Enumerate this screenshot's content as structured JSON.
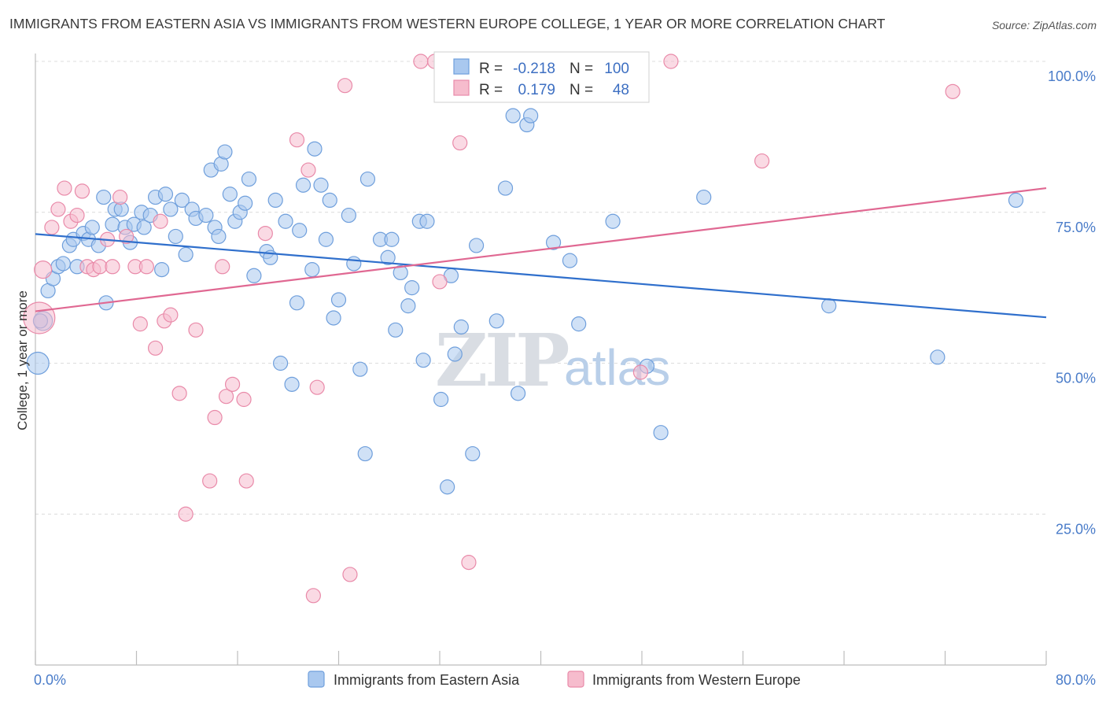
{
  "title": "IMMIGRANTS FROM EASTERN ASIA VS IMMIGRANTS FROM WESTERN EUROPE COLLEGE, 1 YEAR OR MORE CORRELATION CHART",
  "source": "Source: ZipAtlas.com",
  "watermark": {
    "part1": "ZIP",
    "part2": "atlas"
  },
  "colors": {
    "blue": "#6f9fdc",
    "blue_fill": "#a9c8ef",
    "blue_line": "#2f6fcc",
    "pink": "#e98aa9",
    "pink_fill": "#f6bccd",
    "pink_line": "#e06892",
    "axis_text": "#4a7cc9"
  },
  "stats": {
    "blue": {
      "r_label": "R =",
      "r": "-0.218",
      "n_label": "N =",
      "n": "100"
    },
    "pink": {
      "r_label": "R =",
      "r": "0.179",
      "n_label": "N =",
      "n": "48"
    }
  },
  "chart_data": {
    "type": "scatter",
    "xlabel": "",
    "ylabel": "College, 1 year or more",
    "xlim": [
      0,
      80
    ],
    "ylim": [
      0,
      100
    ],
    "x_tick_labels": [
      "0.0%",
      "80.0%"
    ],
    "y_tick_labels": [
      "100.0%",
      "75.0%",
      "50.0%",
      "25.0%"
    ],
    "y_ticks": [
      100,
      75,
      50,
      25
    ],
    "grid": true,
    "legend": "bottom",
    "series": [
      {
        "name": "Immigrants from Eastern Asia",
        "color": "#6f9fdc",
        "trend": {
          "x": [
            0,
            80
          ],
          "y": [
            71.4,
            57.6
          ]
        },
        "points": [
          [
            0.2,
            50.0
          ],
          [
            0.6,
            57.0
          ],
          [
            1.0,
            62.0
          ],
          [
            1.4,
            64.0
          ],
          [
            1.8,
            66.0
          ],
          [
            2.2,
            66.5
          ],
          [
            2.7,
            69.5
          ],
          [
            3.0,
            70.5
          ],
          [
            3.3,
            66.0
          ],
          [
            3.8,
            71.5
          ],
          [
            4.2,
            70.5
          ],
          [
            4.5,
            72.5
          ],
          [
            5.0,
            69.5
          ],
          [
            5.4,
            77.5
          ],
          [
            5.6,
            60.0
          ],
          [
            6.1,
            73.0
          ],
          [
            6.3,
            75.5
          ],
          [
            6.8,
            75.5
          ],
          [
            7.1,
            72.5
          ],
          [
            7.5,
            70.0
          ],
          [
            7.8,
            73.0
          ],
          [
            8.4,
            75.0
          ],
          [
            8.6,
            72.5
          ],
          [
            9.1,
            74.5
          ],
          [
            9.5,
            77.5
          ],
          [
            10.0,
            65.5
          ],
          [
            10.3,
            78.0
          ],
          [
            10.7,
            75.5
          ],
          [
            11.1,
            71.0
          ],
          [
            11.6,
            77.0
          ],
          [
            11.9,
            68.0
          ],
          [
            12.4,
            75.5
          ],
          [
            12.7,
            74.0
          ],
          [
            13.5,
            74.5
          ],
          [
            13.9,
            82.0
          ],
          [
            14.2,
            72.5
          ],
          [
            14.5,
            71.0
          ],
          [
            14.7,
            83.0
          ],
          [
            15.0,
            85.0
          ],
          [
            15.4,
            78.0
          ],
          [
            15.8,
            73.5
          ],
          [
            16.2,
            75.0
          ],
          [
            16.6,
            76.5
          ],
          [
            16.9,
            80.5
          ],
          [
            17.3,
            64.5
          ],
          [
            18.3,
            68.5
          ],
          [
            18.6,
            67.5
          ],
          [
            19.0,
            77.0
          ],
          [
            19.4,
            50.0
          ],
          [
            19.8,
            73.5
          ],
          [
            20.3,
            46.5
          ],
          [
            20.7,
            60.0
          ],
          [
            20.9,
            72.0
          ],
          [
            21.2,
            79.5
          ],
          [
            21.9,
            65.5
          ],
          [
            22.1,
            85.5
          ],
          [
            22.6,
            79.5
          ],
          [
            23.0,
            70.5
          ],
          [
            23.3,
            77.0
          ],
          [
            23.6,
            57.5
          ],
          [
            24.0,
            60.5
          ],
          [
            24.8,
            74.5
          ],
          [
            25.2,
            66.5
          ],
          [
            25.7,
            49.0
          ],
          [
            26.1,
            35.0
          ],
          [
            26.3,
            80.5
          ],
          [
            27.3,
            70.5
          ],
          [
            27.9,
            67.5
          ],
          [
            28.2,
            70.5
          ],
          [
            28.5,
            55.5
          ],
          [
            28.9,
            65.0
          ],
          [
            29.5,
            59.5
          ],
          [
            29.8,
            62.5
          ],
          [
            30.4,
            73.5
          ],
          [
            30.7,
            50.5
          ],
          [
            31.0,
            73.5
          ],
          [
            32.1,
            44.0
          ],
          [
            32.6,
            29.5
          ],
          [
            32.9,
            64.5
          ],
          [
            33.2,
            51.5
          ],
          [
            33.7,
            56.0
          ],
          [
            34.6,
            35.0
          ],
          [
            34.9,
            69.5
          ],
          [
            37.2,
            79.0
          ],
          [
            36.5,
            57.0
          ],
          [
            37.8,
            91.0
          ],
          [
            38.2,
            45.0
          ],
          [
            38.9,
            89.5
          ],
          [
            39.2,
            91.0
          ],
          [
            41.0,
            70.0
          ],
          [
            42.3,
            67.0
          ],
          [
            43.0,
            56.5
          ],
          [
            45.7,
            73.5
          ],
          [
            48.4,
            49.5
          ],
          [
            49.5,
            38.5
          ],
          [
            52.9,
            77.5
          ],
          [
            62.8,
            59.5
          ],
          [
            71.4,
            51.0
          ],
          [
            77.6,
            77.0
          ],
          [
            0.4,
            57.0
          ]
        ]
      },
      {
        "name": "Immigrants from Western Europe",
        "color": "#e98aa9",
        "trend": {
          "x": [
            0,
            80
          ],
          "y": [
            58.6,
            79.0
          ]
        },
        "points": [
          [
            0.3,
            57.5
          ],
          [
            0.6,
            65.5
          ],
          [
            1.3,
            72.5
          ],
          [
            1.8,
            75.5
          ],
          [
            2.3,
            79.0
          ],
          [
            2.8,
            73.5
          ],
          [
            3.3,
            74.5
          ],
          [
            3.7,
            78.5
          ],
          [
            4.1,
            66.0
          ],
          [
            4.6,
            65.5
          ],
          [
            5.1,
            66.0
          ],
          [
            5.7,
            70.5
          ],
          [
            6.1,
            66.0
          ],
          [
            6.7,
            77.5
          ],
          [
            7.2,
            71.0
          ],
          [
            7.9,
            66.0
          ],
          [
            8.3,
            56.5
          ],
          [
            8.8,
            66.0
          ],
          [
            9.5,
            52.5
          ],
          [
            9.9,
            73.5
          ],
          [
            10.2,
            57.0
          ],
          [
            10.7,
            58.0
          ],
          [
            11.4,
            45.0
          ],
          [
            11.9,
            25.0
          ],
          [
            12.7,
            55.5
          ],
          [
            13.8,
            30.5
          ],
          [
            14.2,
            41.0
          ],
          [
            14.8,
            66.0
          ],
          [
            15.1,
            44.5
          ],
          [
            15.6,
            46.5
          ],
          [
            16.5,
            44.0
          ],
          [
            16.7,
            30.5
          ],
          [
            18.2,
            71.5
          ],
          [
            20.7,
            87.0
          ],
          [
            21.6,
            82.0
          ],
          [
            22.0,
            11.5
          ],
          [
            22.3,
            46.0
          ],
          [
            24.5,
            96.0
          ],
          [
            24.9,
            15.0
          ],
          [
            30.5,
            100.0
          ],
          [
            31.6,
            100.0
          ],
          [
            32.0,
            63.5
          ],
          [
            33.6,
            86.5
          ],
          [
            34.3,
            17.0
          ],
          [
            47.9,
            48.5
          ],
          [
            50.3,
            100.0
          ],
          [
            57.5,
            83.5
          ],
          [
            72.6,
            95.0
          ]
        ]
      }
    ]
  },
  "legend": {
    "blue_label": "Immigrants from Eastern Asia",
    "pink_label": "Immigrants from Western Europe"
  }
}
